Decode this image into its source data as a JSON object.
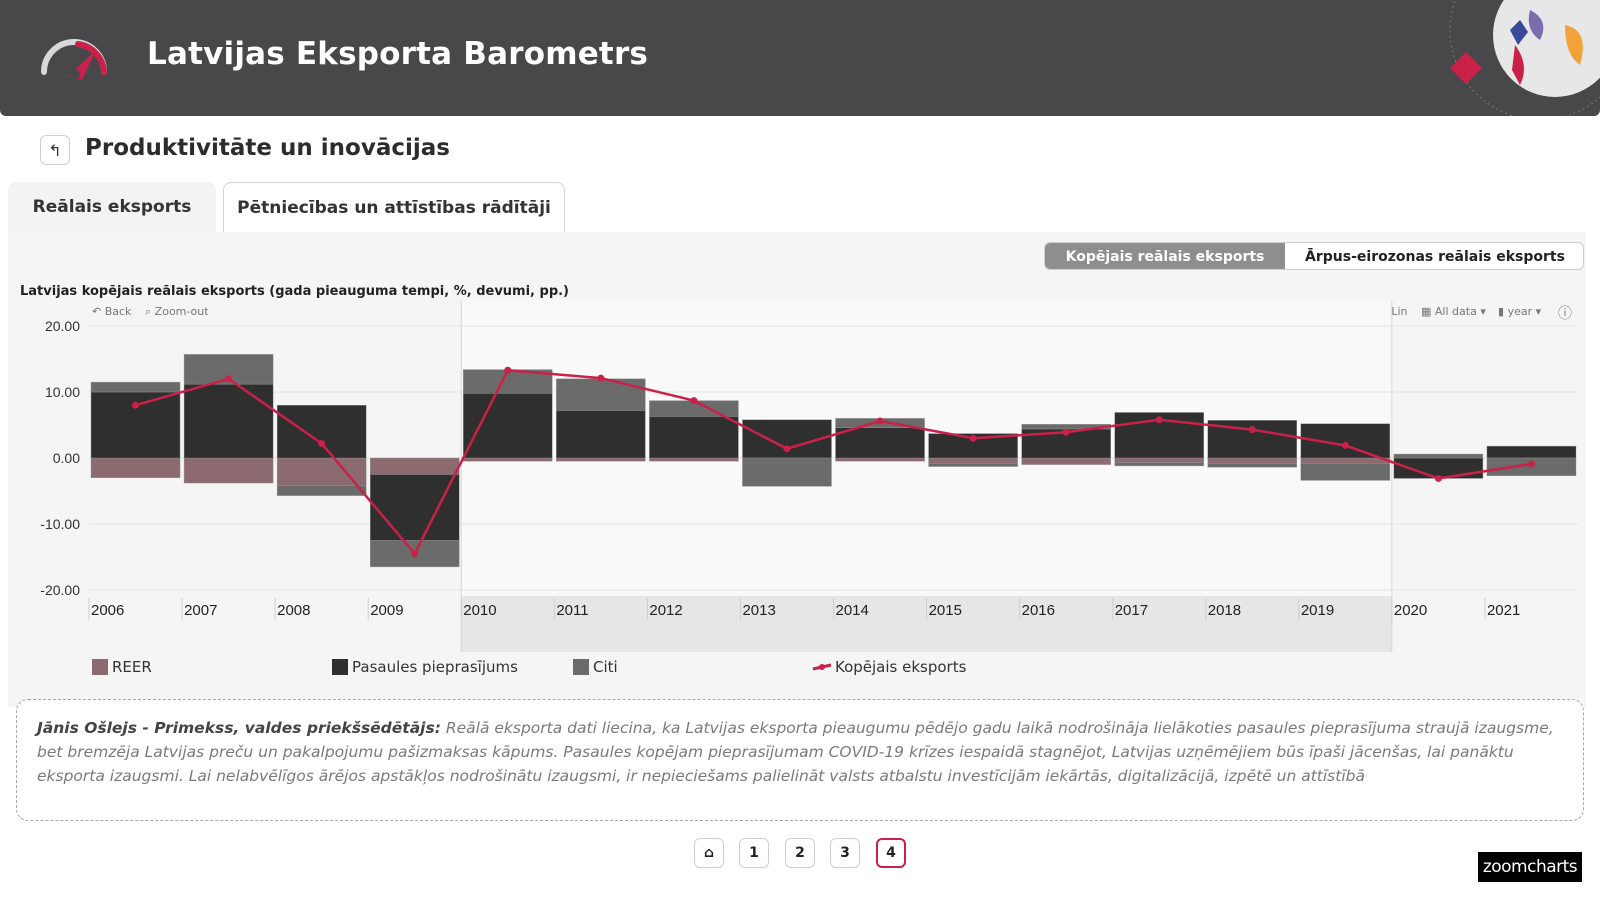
{
  "header": {
    "app_title": "Latvijas Eksporta Barometrs"
  },
  "page": {
    "title": "Produktivitāte un inovācijas",
    "back_icon": "back-arrow-icon"
  },
  "tabs": [
    {
      "label": "Reālais eksports",
      "active": true
    },
    {
      "label": "Pētniecības un attīstības rādītāji",
      "active": false
    }
  ],
  "toggle": [
    {
      "label": "Kopējais reālais eksports",
      "active": true
    },
    {
      "label": "Ārpus-eirozonas reālais eksports",
      "active": false
    }
  ],
  "toolbar": {
    "back_label": "Back",
    "zoom_out_label": "Zoom-out",
    "scale_label": "Lin",
    "range_label": "All data",
    "unit_label": "year"
  },
  "colors": {
    "reer": "#8b6a70",
    "world": "#2f2f2f",
    "other": "#6b6b6b",
    "total": "#c9214a"
  },
  "chart_data": {
    "type": "bar",
    "title": "Latvijas kopējais reālais eksports (gada pieauguma tempi, %, devumi, pp.)",
    "x": [
      "2006",
      "2007",
      "2008",
      "2009",
      "2010",
      "2011",
      "2012",
      "2013",
      "2014",
      "2015",
      "2016",
      "2017",
      "2018",
      "2019",
      "2020",
      "2021"
    ],
    "ylim": [
      -20,
      20
    ],
    "yticks": [
      "20.00",
      "10.00",
      "0.00",
      "-10.00",
      "-20.00"
    ],
    "ytick_values": [
      20,
      10,
      0,
      -10,
      -20
    ],
    "series": [
      {
        "name": "REER",
        "values": [
          -3.0,
          -3.8,
          -4.2,
          -2.5,
          -0.5,
          -0.5,
          -0.5,
          0.0,
          -0.5,
          -0.8,
          -1.0,
          -0.7,
          -0.8,
          -0.8,
          0.0,
          0.0
        ]
      },
      {
        "name": "Pasaules pieprasījums",
        "values": [
          10.0,
          11.2,
          8.0,
          -10.0,
          9.8,
          7.2,
          6.3,
          5.8,
          4.6,
          3.7,
          4.4,
          6.9,
          5.7,
          5.2,
          -3.1,
          1.8
        ]
      },
      {
        "name": "Citi",
        "values": [
          1.5,
          4.5,
          -1.5,
          -4.0,
          3.6,
          4.8,
          2.4,
          -4.3,
          1.4,
          -0.5,
          0.7,
          -0.5,
          -0.6,
          -2.6,
          0.6,
          -2.7
        ]
      },
      {
        "name": "Kopējais eksports",
        "type": "line",
        "values": [
          8.0,
          12.0,
          2.2,
          -14.5,
          13.3,
          12.1,
          8.7,
          1.4,
          5.6,
          3.0,
          3.9,
          5.8,
          4.3,
          1.9,
          -3.1,
          -0.9
        ]
      }
    ],
    "highlight_range": [
      "2010",
      "2019"
    ]
  },
  "legend": [
    "REER",
    "Pasaules pieprasījums",
    "Citi",
    "Kopējais eksports"
  ],
  "quote": {
    "author": "Jānis Ošlejs - Primekss, valdes priekšsēdētājs:",
    "text": " Reālā eksporta dati liecina, ka Latvijas eksporta pieaugumu pēdējo gadu laikā nodrošināja lielākoties pasaules pieprasījuma straujā izaugsme, bet bremzēja Latvijas preču un pakalpojumu pašizmaksas kāpums. Pasaules kopējam pieprasījumam COVID-19 krīzes iespaidā stagnējot, Latvijas uzņēmējiem būs īpaši jācenšas, lai panāktu eksporta izaugsmi. Lai nelabvēlīgos ārējos apstākļos nodrošinātu izaugsmi, ir nepieciešams palielināt valsts atbalstu investīcijām iekārtās, digitalizācijā, izpētē un attīstībā"
  },
  "pager": {
    "pages": [
      "1",
      "2",
      "3",
      "4"
    ],
    "current": "4",
    "home_icon": "home-icon"
  },
  "brand": {
    "label": "zoomcharts"
  }
}
